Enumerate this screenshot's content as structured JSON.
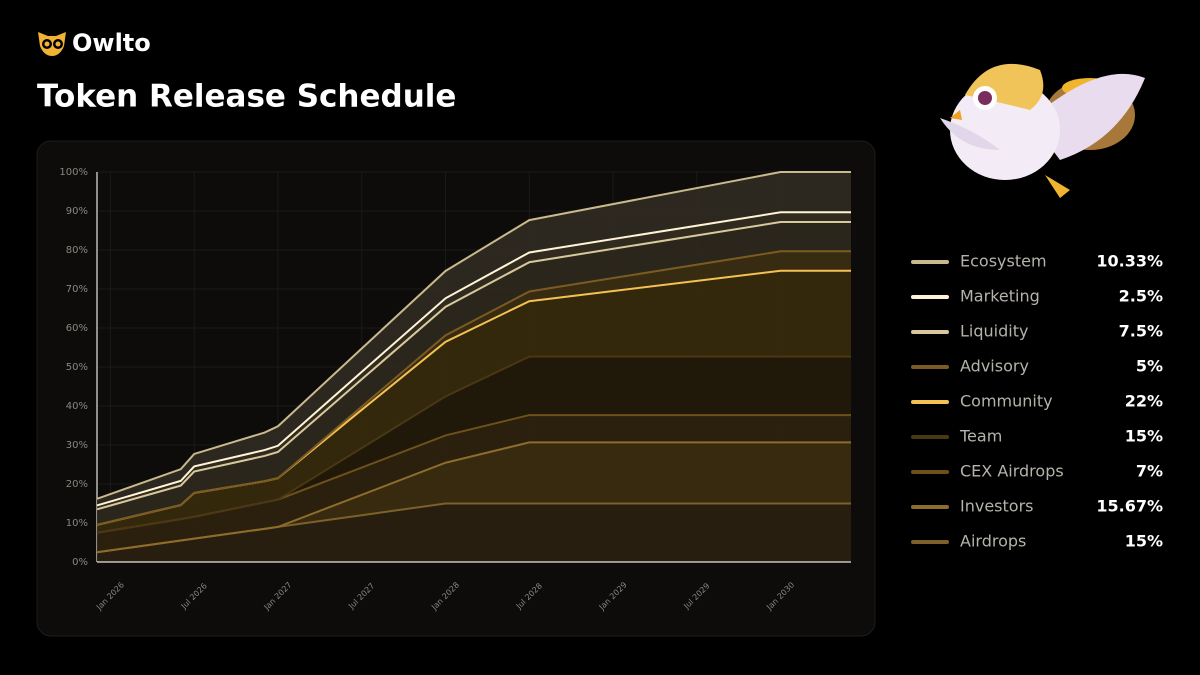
{
  "brand": "Owlto",
  "chart_data": {
    "type": "stacked_area",
    "title": "Token Release Schedule",
    "x": [
      2025.92,
      2026.42,
      2026.5,
      2026.92,
      2027.0,
      2027.5,
      2028.0,
      2028.5,
      2030.0,
      2030.42
    ],
    "xlim": [
      2025.92,
      2030.42
    ],
    "xticks": [
      {
        "value": 2026.0,
        "label": "Jan 2026"
      },
      {
        "value": 2026.5,
        "label": "Jul 2026"
      },
      {
        "value": 2027.0,
        "label": "Jan 2027"
      },
      {
        "value": 2027.5,
        "label": "Jul 2027"
      },
      {
        "value": 2028.0,
        "label": "Jan 2028"
      },
      {
        "value": 2028.5,
        "label": "Jul 2028"
      },
      {
        "value": 2029.0,
        "label": "Jan 2029"
      },
      {
        "value": 2029.5,
        "label": "Jul 2029"
      },
      {
        "value": 2030.0,
        "label": "Jan 2030"
      }
    ],
    "ylim": [
      0,
      100
    ],
    "yticks": [
      {
        "value": 0,
        "label": "0%"
      },
      {
        "value": 10,
        "label": "10%"
      },
      {
        "value": 20,
        "label": "20%"
      },
      {
        "value": 30,
        "label": "30%"
      },
      {
        "value": 40,
        "label": "40%"
      },
      {
        "value": 50,
        "label": "50%"
      },
      {
        "value": 60,
        "label": "60%"
      },
      {
        "value": 70,
        "label": "70%"
      },
      {
        "value": 80,
        "label": "80%"
      },
      {
        "value": 90,
        "label": "90%"
      },
      {
        "value": 100,
        "label": "100%"
      }
    ],
    "grid": true,
    "legend": "right",
    "series": [
      {
        "name": "Ecosystem",
        "total": "10.33%",
        "color": "#c9b98c",
        "fill": "#2f2a21",
        "values": [
          1.7,
          3,
          3.2,
          4.5,
          5,
          6,
          7,
          8.3,
          10.33,
          10.33
        ]
      },
      {
        "name": "Marketing",
        "total": "2.5%",
        "color": "#fff4d6",
        "fill": "#332d20",
        "values": [
          1,
          1.2,
          1.3,
          1.5,
          1.6,
          1.9,
          2.2,
          2.5,
          2.5,
          2.5
        ]
      },
      {
        "name": "Liquidity",
        "total": "7.5%",
        "color": "#d8c89c",
        "fill": "#2d281d",
        "values": [
          4,
          5,
          5.5,
          6.5,
          6.7,
          7,
          7.3,
          7.5,
          7.5,
          7.5
        ]
      },
      {
        "name": "Advisory",
        "total": "5%",
        "color": "#7b5b22",
        "fill": "#3a2d12",
        "values": [
          0,
          0,
          0,
          0,
          0,
          0.83,
          1.67,
          2.5,
          5,
          5
        ]
      },
      {
        "name": "Community",
        "total": "22%",
        "color": "#f4c152",
        "fill": "#372a0d",
        "values": [
          2,
          3.6,
          6.1,
          5.4,
          5.5,
          9.8,
          14,
          14.2,
          22,
          22
        ]
      },
      {
        "name": "Team",
        "total": "15%",
        "color": "#4a3714",
        "fill": "#22190a",
        "values": [
          0,
          0,
          0,
          0,
          0,
          5,
          10,
          15,
          15,
          15
        ]
      },
      {
        "name": "CEX Airdrops",
        "total": "7%",
        "color": "#6e501a",
        "fill": "#2c220e",
        "values": [
          5,
          5.5,
          5.6,
          6.8,
          7,
          7,
          7,
          7,
          7,
          7
        ]
      },
      {
        "name": "Investors",
        "total": "15.67%",
        "color": "#8d6c2c",
        "fill": "#3a2c10",
        "values": [
          0,
          0,
          0,
          0,
          0,
          5.22,
          10.45,
          15.67,
          15.67,
          15.67
        ]
      },
      {
        "name": "Airdrops",
        "total": "15%",
        "color": "#7d602a",
        "fill": "#2a2010",
        "values": [
          2.5,
          5.5,
          6,
          8.5,
          9,
          12,
          15,
          15,
          15,
          15
        ]
      }
    ]
  }
}
